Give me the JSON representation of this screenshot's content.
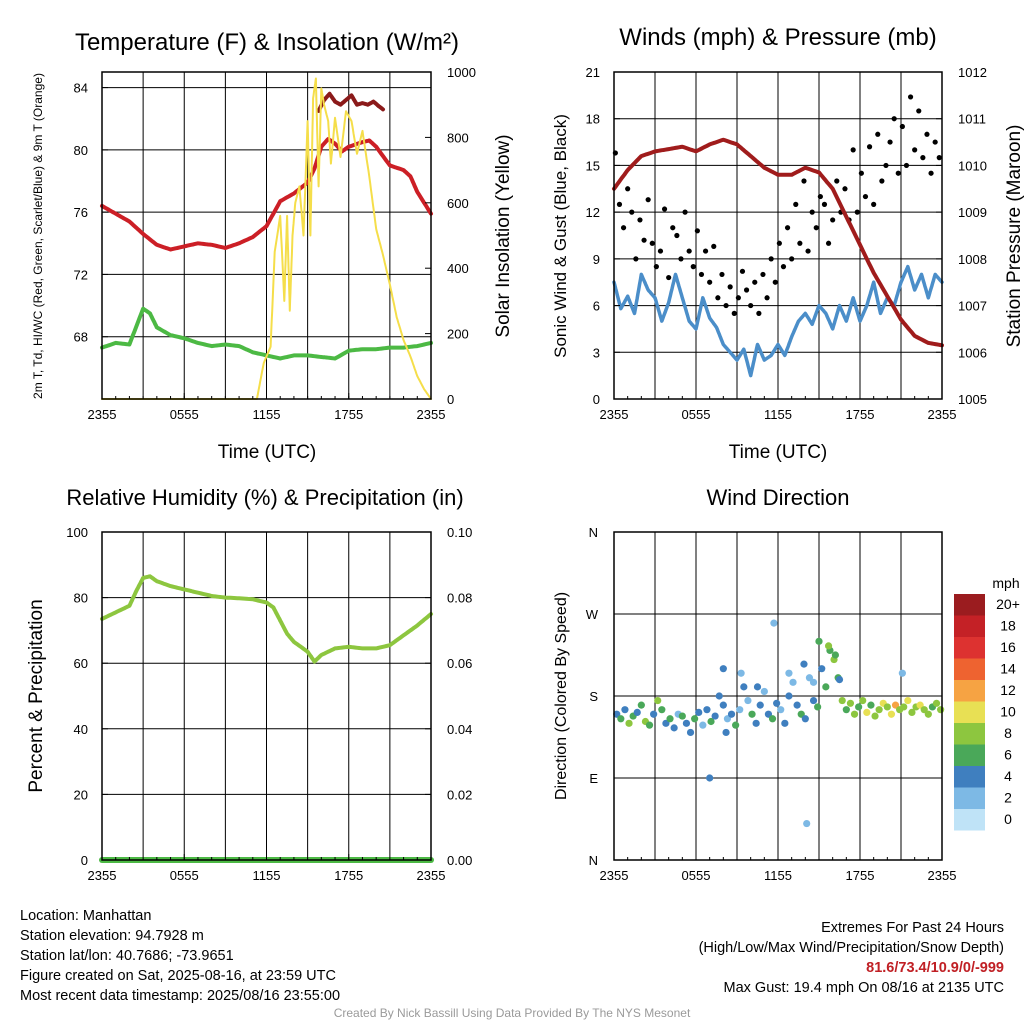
{
  "chart_data": [
    {
      "type": "line",
      "title": "Temperature (F) & Insolation (W/m²)",
      "xlabel": "Time (UTC)",
      "ylabel": "2m T, Td, HI/WC (Red, Green, Scarlet/Blue) & 9m T (Orange)",
      "ylabel_right": "Solar Insolation (Yellow)",
      "x_ticks": [
        "2355",
        "0555",
        "1155",
        "1755",
        "2355"
      ],
      "x_range_hours": [
        0,
        24
      ],
      "ylim": [
        64,
        85
      ],
      "y_ticks": [
        68,
        72,
        76,
        80,
        84
      ],
      "ylim_right": [
        0,
        1000
      ],
      "y_ticks_right": [
        0,
        200,
        400,
        600,
        800,
        1000
      ],
      "grid": true,
      "series": [
        {
          "name": "Red",
          "color": "#cc1f26",
          "axis": "left",
          "x": [
            0,
            1,
            2,
            3,
            4,
            5,
            6,
            7,
            8,
            9,
            10,
            11,
            12,
            13,
            14,
            15,
            15.5,
            16,
            16.5,
            17,
            17.5,
            18,
            19,
            19.5,
            20,
            21,
            22,
            22.5,
            23,
            24
          ],
          "y": [
            76.4,
            75.9,
            75.4,
            74.6,
            73.9,
            73.6,
            73.8,
            74.0,
            73.9,
            73.7,
            74.0,
            74.4,
            75.1,
            76.7,
            77.2,
            77.9,
            78.8,
            80.2,
            80.7,
            80.4,
            79.9,
            80.2,
            80.5,
            80.6,
            80.2,
            79.0,
            78.7,
            78.3,
            77.3,
            75.9
          ]
        },
        {
          "name": "Scarlet",
          "color": "#8b1a1a",
          "axis": "left",
          "x": [
            15.8,
            16.2,
            16.6,
            17,
            17.4,
            17.8,
            18.2,
            18.6,
            19,
            19.4,
            19.8,
            20.2,
            20.5
          ],
          "y": [
            82.5,
            83.2,
            83.6,
            83.1,
            82.9,
            83.2,
            83.5,
            82.9,
            83.0,
            82.9,
            83.1,
            82.8,
            82.6
          ]
        },
        {
          "name": "Green",
          "color": "#4cb944",
          "axis": "left",
          "x": [
            0,
            1,
            2,
            3,
            3.5,
            4,
            5,
            6,
            7,
            8,
            9,
            10,
            11,
            12,
            13,
            14,
            15,
            16,
            17,
            18,
            19,
            20,
            21,
            22,
            23,
            24
          ],
          "y": [
            67.3,
            67.6,
            67.5,
            69.8,
            69.5,
            68.6,
            68.1,
            67.9,
            67.6,
            67.4,
            67.5,
            67.4,
            67.0,
            66.8,
            66.6,
            66.8,
            66.8,
            66.7,
            66.6,
            67.1,
            67.2,
            67.2,
            67.3,
            67.3,
            67.4,
            67.6
          ]
        },
        {
          "name": "Yellow",
          "color": "#f5de4a",
          "axis": "right",
          "x": [
            0,
            11.3,
            11.8,
            12.3,
            12.6,
            13.0,
            13.3,
            13.5,
            13.7,
            13.9,
            14.1,
            14.4,
            14.7,
            15.0,
            15.2,
            15.4,
            15.6,
            15.8,
            16.0,
            16.2,
            16.5,
            16.7,
            17.0,
            17.4,
            17.8,
            18.2,
            18.6,
            19.0,
            19.5,
            20.0,
            20.5,
            21.0,
            21.5,
            22.0,
            22.5,
            23.0,
            23.5,
            24
          ],
          "y": [
            0,
            0,
            110,
            160,
            450,
            560,
            300,
            560,
            270,
            500,
            600,
            650,
            500,
            850,
            500,
            920,
            980,
            650,
            950,
            900,
            850,
            720,
            860,
            740,
            880,
            850,
            750,
            820,
            680,
            520,
            440,
            350,
            250,
            180,
            130,
            70,
            30,
            0
          ]
        }
      ]
    },
    {
      "type": "line",
      "title": "Winds (mph) & Pressure (mb)",
      "xlabel": "Time (UTC)",
      "ylabel": "Sonic Wind & Gust (Blue, Black)",
      "ylabel_right": "Station Pressure (Maroon)",
      "x_ticks": [
        "2355",
        "0555",
        "1155",
        "1755",
        "2355"
      ],
      "x_range_hours": [
        0,
        24
      ],
      "ylim": [
        0,
        21
      ],
      "y_ticks": [
        0,
        3,
        6,
        9,
        12,
        15,
        18,
        21
      ],
      "ylim_right": [
        1005,
        1012
      ],
      "y_ticks_right": [
        1005,
        1006,
        1007,
        1008,
        1009,
        1010,
        1011,
        1012
      ],
      "grid": true,
      "series": [
        {
          "name": "Blue",
          "color": "#4b8ec9",
          "axis": "left",
          "x": [
            0,
            0.5,
            1,
            1.5,
            2,
            2.5,
            3,
            3.5,
            4,
            4.5,
            5,
            5.5,
            6,
            6.5,
            7,
            7.5,
            8,
            8.5,
            9,
            9.5,
            10,
            10.5,
            11,
            11.5,
            12,
            12.5,
            13,
            13.5,
            14,
            14.5,
            15,
            15.5,
            16,
            16.5,
            17,
            17.5,
            18,
            18.5,
            19,
            19.5,
            20,
            20.5,
            21,
            21.5,
            22,
            22.5,
            23,
            23.5,
            24
          ],
          "y": [
            7.5,
            5.8,
            6.6,
            5.5,
            8.0,
            7.0,
            6.5,
            5.0,
            6.2,
            8.0,
            6.5,
            5.0,
            4.5,
            6.5,
            5.2,
            4.6,
            3.5,
            3.0,
            2.5,
            3.2,
            1.5,
            3.5,
            2.5,
            2.8,
            3.5,
            2.8,
            4.0,
            5.0,
            5.5,
            4.8,
            6.0,
            5.5,
            4.5,
            6.0,
            5.0,
            6.5,
            5.0,
            6.0,
            7.5,
            5.5,
            6.5,
            6.0,
            7.5,
            8.5,
            7.0,
            8.0,
            6.5,
            8.0,
            7.5
          ]
        },
        {
          "name": "Black",
          "color": "#000000",
          "axis": "left",
          "style": "dots",
          "x": [
            0.1,
            0.4,
            0.7,
            1.0,
            1.3,
            1.6,
            1.9,
            2.2,
            2.5,
            2.8,
            3.1,
            3.4,
            3.7,
            4.0,
            4.3,
            4.6,
            4.9,
            5.2,
            5.5,
            5.8,
            6.1,
            6.4,
            6.7,
            7.0,
            7.3,
            7.6,
            7.9,
            8.2,
            8.5,
            8.8,
            9.1,
            9.4,
            9.7,
            10.0,
            10.3,
            10.6,
            10.9,
            11.2,
            11.5,
            11.8,
            12.1,
            12.4,
            12.7,
            13.0,
            13.3,
            13.6,
            13.9,
            14.2,
            14.5,
            14.8,
            15.1,
            15.4,
            15.7,
            16.0,
            16.3,
            16.6,
            16.9,
            17.2,
            17.5,
            17.8,
            18.1,
            18.4,
            18.7,
            19.0,
            19.3,
            19.6,
            19.9,
            20.2,
            20.5,
            20.8,
            21.1,
            21.4,
            21.7,
            22.0,
            22.3,
            22.6,
            22.9,
            23.2,
            23.5,
            23.8
          ],
          "y": [
            15.8,
            12.5,
            11.0,
            13.5,
            12.0,
            9.0,
            11.5,
            10.2,
            12.8,
            10.0,
            8.5,
            9.5,
            12.2,
            7.8,
            11.0,
            10.5,
            9.0,
            12.0,
            9.5,
            8.5,
            10.8,
            8.0,
            9.5,
            7.5,
            9.8,
            6.5,
            8.0,
            6.0,
            7.2,
            5.5,
            6.5,
            8.2,
            7.0,
            6.0,
            7.5,
            5.5,
            8.0,
            6.5,
            9.0,
            7.5,
            10.0,
            8.5,
            11.0,
            9.0,
            12.5,
            10.0,
            14.0,
            9.5,
            12.0,
            11.0,
            13.0,
            12.5,
            10.0,
            11.5,
            14.0,
            12.0,
            13.5,
            11.5,
            16.0,
            12.0,
            14.5,
            13.0,
            16.2,
            12.5,
            17.0,
            14.0,
            15.0,
            16.5,
            18.0,
            14.5,
            17.5,
            15.0,
            19.4,
            16.0,
            18.5,
            15.5,
            17.0,
            14.5,
            16.5,
            15.5
          ]
        },
        {
          "name": "Maroon",
          "color": "#a01c1c",
          "axis": "right",
          "x": [
            0,
            1,
            2,
            3,
            4,
            5,
            6,
            7,
            8,
            9,
            10,
            11,
            12,
            13,
            14,
            15,
            16,
            17,
            18,
            19,
            20,
            21,
            22,
            23,
            24
          ],
          "y": [
            1009.5,
            1009.9,
            1010.2,
            1010.3,
            1010.35,
            1010.4,
            1010.3,
            1010.45,
            1010.55,
            1010.45,
            1010.2,
            1009.95,
            1009.8,
            1009.8,
            1009.95,
            1009.85,
            1009.5,
            1008.9,
            1008.3,
            1007.7,
            1007.2,
            1006.7,
            1006.35,
            1006.2,
            1006.15
          ]
        }
      ]
    },
    {
      "type": "line",
      "title": "Relative Humidity (%) & Precipitation (in)",
      "xlabel": "",
      "ylabel": "Percent & Precipitation",
      "x_ticks": [
        "2355",
        "0555",
        "1155",
        "1755",
        "2355"
      ],
      "x_range_hours": [
        0,
        24
      ],
      "ylim": [
        0,
        100
      ],
      "y_ticks": [
        0,
        20,
        40,
        60,
        80,
        100
      ],
      "ylim_right": [
        0,
        0.1
      ],
      "y_ticks_right": [
        "0.00",
        "0.02",
        "0.04",
        "0.06",
        "0.08",
        "0.10"
      ],
      "grid": true,
      "series": [
        {
          "name": "RH",
          "color": "#8dc63f",
          "axis": "left",
          "x": [
            0,
            1,
            2,
            2.5,
            3,
            3.5,
            4,
            5,
            6,
            7,
            8,
            9,
            10,
            11,
            12,
            12.5,
            13,
            13.5,
            14,
            15,
            15.5,
            16,
            17,
            18,
            19,
            20,
            21,
            22,
            23,
            24
          ],
          "y": [
            73.5,
            75.5,
            77.5,
            82.0,
            86.0,
            86.5,
            85.0,
            83.5,
            82.5,
            81.5,
            80.5,
            80.0,
            79.8,
            79.5,
            78.5,
            77.0,
            73.0,
            69.0,
            66.5,
            63.5,
            60.5,
            62.5,
            64.5,
            65.0,
            64.5,
            64.5,
            65.5,
            68.5,
            71.5,
            75.0
          ]
        },
        {
          "name": "Precipitation",
          "color": "#4cb944",
          "axis": "right",
          "x": [
            0,
            24
          ],
          "y": [
            0,
            0
          ]
        }
      ]
    },
    {
      "type": "scatter",
      "title": "Wind Direction",
      "xlabel": "",
      "ylabel": "Direction (Colored By Speed)",
      "x_ticks": [
        "2355",
        "0555",
        "1155",
        "1755",
        "2355"
      ],
      "x_range_hours": [
        0,
        24
      ],
      "y_ticks": [
        "N",
        "E",
        "S",
        "W",
        "N"
      ],
      "ylim": [
        0,
        360
      ],
      "grid": true,
      "colorbar": {
        "title": "mph",
        "labels": [
          "20+",
          "18",
          "16",
          "14",
          "12",
          "10",
          "8",
          "6",
          "4",
          "2",
          "0"
        ],
        "colors": [
          "#9b1c1f",
          "#c42126",
          "#dd3230",
          "#ee6330",
          "#f6a343",
          "#e8e054",
          "#8dc63f",
          "#4aa859",
          "#3f7fbf",
          "#7db9e5",
          "#bfe3f7"
        ]
      },
      "points": {
        "x": [
          0.2,
          0.5,
          0.8,
          1.1,
          1.4,
          1.7,
          2.0,
          2.3,
          2.6,
          2.9,
          3.2,
          3.5,
          3.8,
          4.1,
          4.4,
          4.7,
          5.0,
          5.3,
          5.6,
          5.9,
          6.2,
          6.5,
          6.8,
          7.1,
          7.4,
          7.7,
          8.0,
          8.3,
          8.6,
          8.9,
          9.2,
          9.5,
          9.8,
          10.1,
          10.4,
          10.7,
          11.0,
          11.3,
          11.6,
          11.9,
          12.2,
          12.5,
          12.8,
          13.1,
          13.4,
          13.7,
          14.0,
          14.3,
          14.6,
          14.9,
          15.2,
          15.5,
          15.8,
          16.1,
          16.4,
          16.7,
          17.0,
          17.3,
          17.6,
          17.9,
          18.2,
          18.5,
          18.8,
          19.1,
          19.4,
          19.7,
          20.0,
          20.3,
          20.6,
          20.9,
          21.2,
          21.5,
          21.8,
          22.1,
          22.4,
          22.7,
          23.0,
          23.3,
          23.6,
          23.9,
          8.0,
          9.3,
          10.5,
          12.8,
          13.9,
          14.6,
          15.7,
          15.0,
          16.2,
          16.5,
          7.0,
          8.2,
          11.7,
          14.1,
          21.1
        ],
        "y": [
          160,
          155,
          165,
          150,
          158,
          162,
          170,
          152,
          148,
          160,
          175,
          165,
          150,
          155,
          145,
          160,
          158,
          150,
          140,
          155,
          162,
          148,
          165,
          152,
          158,
          180,
          170,
          155,
          160,
          148,
          165,
          190,
          175,
          160,
          150,
          170,
          185,
          160,
          155,
          172,
          165,
          150,
          180,
          195,
          170,
          160,
          155,
          200,
          175,
          168,
          210,
          190,
          230,
          220,
          200,
          175,
          165,
          172,
          160,
          168,
          175,
          162,
          170,
          158,
          165,
          172,
          168,
          160,
          170,
          165,
          168,
          175,
          162,
          168,
          170,
          165,
          160,
          168,
          172,
          165,
          210,
          205,
          190,
          205,
          215,
          195,
          235,
          240,
          225,
          198,
          90,
          140,
          260,
          40,
          205
        ],
        "speed": [
          4,
          6,
          4,
          8,
          6,
          4,
          6,
          8,
          6,
          4,
          8,
          6,
          4,
          6,
          4,
          2,
          6,
          4,
          4,
          6,
          4,
          2,
          4,
          6,
          4,
          4,
          4,
          2,
          4,
          6,
          2,
          4,
          2,
          6,
          4,
          4,
          2,
          4,
          6,
          4,
          2,
          4,
          4,
          2,
          4,
          6,
          4,
          2,
          4,
          6,
          4,
          6,
          6,
          8,
          6,
          8,
          6,
          8,
          8,
          6,
          8,
          10,
          6,
          8,
          8,
          10,
          8,
          10,
          12,
          8,
          8,
          10,
          8,
          8,
          10,
          8,
          8,
          6,
          8,
          8,
          4,
          2,
          4,
          2,
          4,
          2,
          8,
          6,
          6,
          4,
          4,
          4,
          2,
          2,
          2
        ]
      }
    }
  ],
  "info": {
    "location": "Location: Manhattan",
    "elevation": "Station elevation: 94.7928 m",
    "latlon": "Station lat/lon: 40.7686; -73.9651",
    "created": "Figure created on Sat, 2025-08-16, at 23:59 UTC",
    "recent": "Most recent data timestamp: 2025/08/16 23:55:00"
  },
  "extremes": {
    "title": "Extremes For Past 24 Hours",
    "subtitle": "(High/Low/Max Wind/Precipitation/Snow Depth)",
    "values": "81.6/73.4/10.9/0/-999",
    "gust": "Max Gust: 19.4 mph On 08/16 at 2135 UTC"
  },
  "credit": "Created By Nick Bassill Using Data Provided By The NYS Mesonet"
}
